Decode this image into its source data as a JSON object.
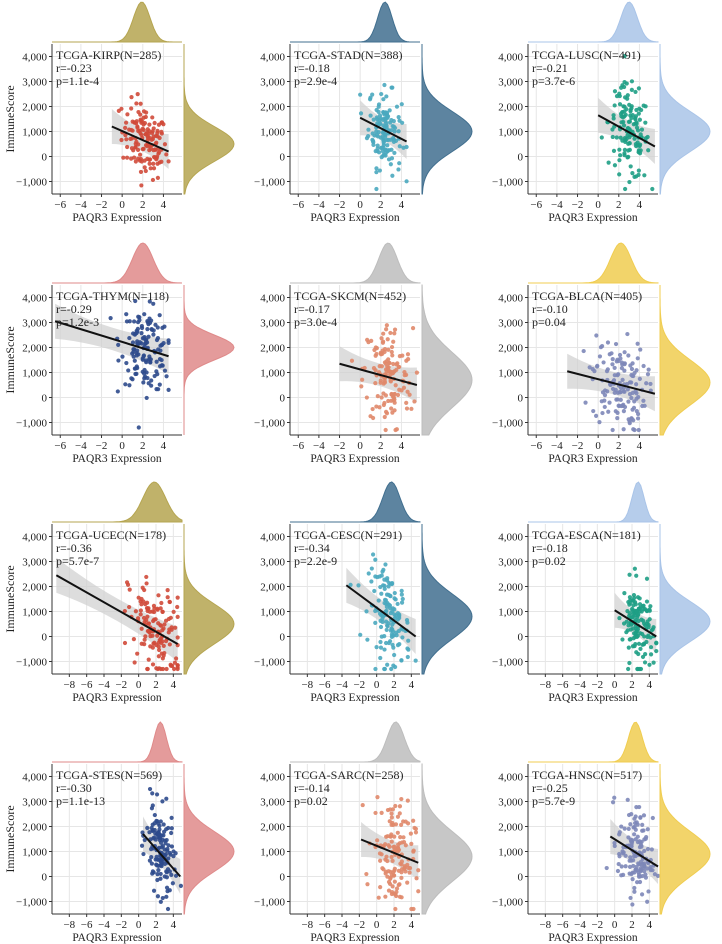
{
  "chart_data": [
    {
      "type": "scatter",
      "title": "TCGA-KIRP(N=285)",
      "stat_r": "r=-0.23",
      "stat_p": "p=1.1e-4",
      "xlabel": "PAQR3 Expression",
      "ylabel": "ImmuneScore",
      "xlim": [
        -6.8,
        5.8
      ],
      "ylim": [
        -1500,
        4500
      ],
      "xticks": [
        -6,
        -4,
        -2,
        0,
        2,
        4
      ],
      "xtick_labels": [
        "−6",
        "−4",
        "−2",
        "0",
        "2",
        "4"
      ],
      "yticks": [
        -1000,
        0,
        1000,
        2000,
        3000,
        4000
      ],
      "ytick_labels": [
        "−1,000",
        "0",
        "1,000",
        "2,000",
        "3,000",
        "4,000"
      ],
      "x_range": [
        -1,
        4.5
      ],
      "x_center": 2.2,
      "x_sd": 1.1,
      "y_center": 500,
      "y_sd": 700,
      "fit": {
        "x0": -1,
        "y0": 1200,
        "x1": 4.5,
        "y1": 200
      },
      "color": "#d04a3a",
      "density_color": "#b5a550",
      "marginal_x": {
        "center": 1.9,
        "sd": 0.8
      },
      "marginal_y": {
        "center": 500,
        "sd": 700
      }
    },
    {
      "type": "scatter",
      "title": "TCGA-STAD(N=388)",
      "stat_r": "r=-0.18",
      "stat_p": "p=2.9e-4",
      "xlabel": "PAQR3 Expression",
      "ylabel": "",
      "xlim": [
        -6.8,
        5.8
      ],
      "ylim": [
        -1500,
        4500
      ],
      "xticks": [
        -6,
        -4,
        -2,
        0,
        2,
        4
      ],
      "xtick_labels": [
        "−6",
        "−4",
        "−2",
        "0",
        "2",
        "4"
      ],
      "yticks": [
        -1000,
        0,
        1000,
        2000,
        3000,
        4000
      ],
      "ytick_labels": [
        "−1,000",
        "0",
        "1,000",
        "2,000",
        "3,000",
        "4,000"
      ],
      "x_range": [
        0,
        4.5
      ],
      "x_center": 2.4,
      "x_sd": 0.8,
      "y_center": 1000,
      "y_sd": 800,
      "fit": {
        "x0": 0,
        "y0": 1550,
        "x1": 4.5,
        "y1": 600
      },
      "color": "#4aa8bf",
      "density_color": "#416f8f",
      "marginal_x": {
        "center": 2.4,
        "sd": 0.7
      },
      "marginal_y": {
        "center": 1000,
        "sd": 800
      }
    },
    {
      "type": "scatter",
      "title": "TCGA-LUSC(N=491)",
      "stat_r": "r=-0.21",
      "stat_p": "p=3.7e-6",
      "xlabel": "PAQR3 Expression",
      "ylabel": "",
      "xlim": [
        -6.8,
        5.8
      ],
      "ylim": [
        -1500,
        4500
      ],
      "xticks": [
        -6,
        -4,
        -2,
        0,
        2,
        4
      ],
      "xtick_labels": [
        "−6",
        "−4",
        "−2",
        "0",
        "2",
        "4"
      ],
      "yticks": [
        -1000,
        0,
        1000,
        2000,
        3000,
        4000
      ],
      "ytick_labels": [
        "−1,000",
        "0",
        "1,000",
        "2,000",
        "3,000",
        "4,000"
      ],
      "x_range": [
        0,
        5.5
      ],
      "x_center": 3.0,
      "x_sd": 1.0,
      "y_center": 900,
      "y_sd": 900,
      "fit": {
        "x0": 0,
        "y0": 1650,
        "x1": 5.5,
        "y1": 400
      },
      "color": "#1e9e85",
      "density_color": "#a9c4e8",
      "marginal_x": {
        "center": 3.0,
        "sd": 0.8
      },
      "marginal_y": {
        "center": 1000,
        "sd": 800
      }
    },
    {
      "type": "scatter",
      "title": "TCGA-THYM(N=118)",
      "stat_r": "r=-0.29",
      "stat_p": "p=1.2e-3",
      "xlabel": "PAQR3 Expression",
      "ylabel": "ImmuneScore",
      "xlim": [
        -6.8,
        5.8
      ],
      "ylim": [
        -1500,
        4500
      ],
      "xticks": [
        -6,
        -4,
        -2,
        0,
        2,
        4
      ],
      "xtick_labels": [
        "−6",
        "−4",
        "−2",
        "0",
        "2",
        "4"
      ],
      "yticks": [
        -1000,
        0,
        1000,
        2000,
        3000,
        4000
      ],
      "ytick_labels": [
        "−1,000",
        "0",
        "1,000",
        "2,000",
        "3,000",
        "4,000"
      ],
      "x_range": [
        -2,
        4.5
      ],
      "x_center": 2.3,
      "x_sd": 1.2,
      "y_center": 1900,
      "y_sd": 800,
      "fit": {
        "x0": -6.5,
        "y0": 3050,
        "x1": 4.5,
        "y1": 1650
      },
      "color": "#2e4a8c",
      "density_color": "#df8a8a",
      "marginal_x": {
        "center": 2.0,
        "sd": 1.0
      },
      "marginal_y": {
        "center": 2000,
        "sd": 500
      }
    },
    {
      "type": "scatter",
      "title": "TCGA-SKCM(N=452)",
      "stat_r": "r=-0.17",
      "stat_p": "p=3.0e-4",
      "xlabel": "PAQR3 Expression",
      "ylabel": "",
      "xlim": [
        -6.8,
        5.8
      ],
      "ylim": [
        -1500,
        4500
      ],
      "xticks": [
        -6,
        -4,
        -2,
        0,
        2,
        4
      ],
      "xtick_labels": [
        "−6",
        "−4",
        "−2",
        "0",
        "2",
        "4"
      ],
      "yticks": [
        -1000,
        0,
        1000,
        2000,
        3000,
        4000
      ],
      "ytick_labels": [
        "−1,000",
        "0",
        "1,000",
        "2,000",
        "3,000",
        "4,000"
      ],
      "x_range": [
        -2,
        5.5
      ],
      "x_center": 2.7,
      "x_sd": 1.2,
      "y_center": 1000,
      "y_sd": 1100,
      "fit": {
        "x0": -2,
        "y0": 1350,
        "x1": 5.5,
        "y1": 500
      },
      "color": "#e0886a",
      "density_color": "#bdbdbd",
      "marginal_x": {
        "center": 2.7,
        "sd": 0.9
      },
      "marginal_y": {
        "center": 700,
        "sd": 1100
      }
    },
    {
      "type": "scatter",
      "title": "TCGA-BLCA(N=405)",
      "stat_r": "r=-0.10",
      "stat_p": "p=0.04",
      "xlabel": "PAQR3 Expression",
      "ylabel": "",
      "xlim": [
        -6.8,
        5.8
      ],
      "ylim": [
        -1500,
        4500
      ],
      "xticks": [
        -6,
        -4,
        -2,
        0,
        2,
        4
      ],
      "xtick_labels": [
        "−6",
        "−4",
        "−2",
        "0",
        "2",
        "4"
      ],
      "yticks": [
        -1000,
        0,
        1000,
        2000,
        3000,
        4000
      ],
      "ytick_labels": [
        "−1,000",
        "0",
        "1,000",
        "2,000",
        "3,000",
        "4,000"
      ],
      "x_range": [
        -3,
        5.5
      ],
      "x_center": 2.0,
      "x_sd": 1.3,
      "y_center": 600,
      "y_sd": 900,
      "fit": {
        "x0": -3,
        "y0": 1050,
        "x1": 5.5,
        "y1": 150
      },
      "color": "#7d87b8",
      "density_color": "#f0cd50",
      "marginal_x": {
        "center": 2.2,
        "sd": 1.0
      },
      "marginal_y": {
        "center": 600,
        "sd": 900
      }
    },
    {
      "type": "scatter",
      "title": "TCGA-UCEC(N=178)",
      "stat_r": "r=-0.36",
      "stat_p": "p=5.7e-7",
      "xlabel": "PAQR3 Expression",
      "ylabel": "ImmuneScore",
      "xlim": [
        -10,
        5
      ],
      "ylim": [
        -1500,
        4500
      ],
      "xticks": [
        -8,
        -6,
        -4,
        -2,
        0,
        2,
        4
      ],
      "xtick_labels": [
        "−8",
        "−6",
        "−4",
        "−2",
        "0",
        "2",
        "4"
      ],
      "yticks": [
        -1000,
        0,
        1000,
        2000,
        3000,
        4000
      ],
      "ytick_labels": [
        "−1,000",
        "0",
        "1,000",
        "2,000",
        "3,000",
        "4,000"
      ],
      "x_range": [
        -9.5,
        4.5
      ],
      "x_center": 2.0,
      "x_sd": 1.6,
      "y_center": 400,
      "y_sd": 900,
      "fit": {
        "x0": -9.5,
        "y0": 2450,
        "x1": 4.5,
        "y1": -300
      },
      "color": "#d04a3a",
      "density_color": "#b5a550",
      "marginal_x": {
        "center": 1.8,
        "sd": 1.3
      },
      "marginal_y": {
        "center": 500,
        "sd": 800
      }
    },
    {
      "type": "scatter",
      "title": "TCGA-CESC(N=291)",
      "stat_r": "r=-0.34",
      "stat_p": "p=2.2e-9",
      "xlabel": "PAQR3 Expression",
      "ylabel": "",
      "xlim": [
        -10,
        5
      ],
      "ylim": [
        -1500,
        4500
      ],
      "xticks": [
        -8,
        -6,
        -4,
        -2,
        0,
        2,
        4
      ],
      "xtick_labels": [
        "−8",
        "−6",
        "−4",
        "−2",
        "0",
        "2",
        "4"
      ],
      "yticks": [
        -1000,
        0,
        1000,
        2000,
        3000,
        4000
      ],
      "ytick_labels": [
        "−1,000",
        "0",
        "1,000",
        "2,000",
        "3,000",
        "4,000"
      ],
      "x_range": [
        -3.5,
        4.5
      ],
      "x_center": 1.5,
      "x_sd": 1.2,
      "y_center": 700,
      "y_sd": 900,
      "fit": {
        "x0": -3.5,
        "y0": 2050,
        "x1": 4.5,
        "y1": 0
      },
      "color": "#4aa8bf",
      "density_color": "#416f8f",
      "marginal_x": {
        "center": 1.7,
        "sd": 1.0
      },
      "marginal_y": {
        "center": 800,
        "sd": 900
      }
    },
    {
      "type": "scatter",
      "title": "TCGA-ESCA(N=181)",
      "stat_r": "r=-0.18",
      "stat_p": "p=0.02",
      "xlabel": "PAQR3 Expression",
      "ylabel": "",
      "xlim": [
        -10,
        5
      ],
      "ylim": [
        -1500,
        4500
      ],
      "xticks": [
        -8,
        -6,
        -4,
        -2,
        0,
        2,
        4
      ],
      "xtick_labels": [
        "−8",
        "−6",
        "−4",
        "−2",
        "0",
        "2",
        "4"
      ],
      "yticks": [
        -1000,
        0,
        1000,
        2000,
        3000,
        4000
      ],
      "ytick_labels": [
        "−1,000",
        "0",
        "1,000",
        "2,000",
        "3,000",
        "4,000"
      ],
      "x_range": [
        -0.5,
        4.8
      ],
      "x_center": 2.7,
      "x_sd": 0.9,
      "y_center": 500,
      "y_sd": 800,
      "fit": {
        "x0": 0,
        "y0": 1050,
        "x1": 4.8,
        "y1": 0
      },
      "color": "#1e9e85",
      "density_color": "#a9c4e8",
      "marginal_x": {
        "center": 2.7,
        "sd": 0.7
      },
      "marginal_y": {
        "center": 600,
        "sd": 800
      }
    },
    {
      "type": "scatter",
      "title": "TCGA-STES(N=569)",
      "stat_r": "r=-0.30",
      "stat_p": "p=1.1e-13",
      "xlabel": "PAQR3 Expression",
      "ylabel": "ImmuneScore",
      "xlim": [
        -10,
        5
      ],
      "ylim": [
        -1500,
        4500
      ],
      "xticks": [
        -8,
        -6,
        -4,
        -2,
        0,
        2,
        4
      ],
      "xtick_labels": [
        "−8",
        "−6",
        "−4",
        "−2",
        "0",
        "2",
        "4"
      ],
      "yticks": [
        -1000,
        0,
        1000,
        2000,
        3000,
        4000
      ],
      "ytick_labels": [
        "−1,000",
        "0",
        "1,000",
        "2,000",
        "3,000",
        "4,000"
      ],
      "x_range": [
        0,
        5
      ],
      "x_center": 2.5,
      "x_sd": 0.8,
      "y_center": 800,
      "y_sd": 850,
      "fit": {
        "x0": 0.5,
        "y0": 1700,
        "x1": 4.8,
        "y1": 0
      },
      "color": "#2e4a8c",
      "density_color": "#df8a8a",
      "marginal_x": {
        "center": 2.5,
        "sd": 0.7
      },
      "marginal_y": {
        "center": 1000,
        "sd": 800
      }
    },
    {
      "type": "scatter",
      "title": "TCGA-SARC(N=258)",
      "stat_r": "r=-0.14",
      "stat_p": "p=0.02",
      "xlabel": "PAQR3 Expression",
      "ylabel": "",
      "xlim": [
        -10,
        5
      ],
      "ylim": [
        -1500,
        4500
      ],
      "xticks": [
        -8,
        -6,
        -4,
        -2,
        0,
        2,
        4
      ],
      "xtick_labels": [
        "−8",
        "−6",
        "−4",
        "−2",
        "0",
        "2",
        "4"
      ],
      "yticks": [
        -1000,
        0,
        1000,
        2000,
        3000,
        4000
      ],
      "ytick_labels": [
        "−1,000",
        "0",
        "1,000",
        "2,000",
        "3,000",
        "4,000"
      ],
      "x_range": [
        -1.8,
        4.8
      ],
      "x_center": 2.0,
      "x_sd": 1.2,
      "y_center": 800,
      "y_sd": 1100,
      "fit": {
        "x0": -1.8,
        "y0": 1480,
        "x1": 4.8,
        "y1": 550
      },
      "color": "#e0886a",
      "density_color": "#bdbdbd",
      "marginal_x": {
        "center": 2.2,
        "sd": 1.0
      },
      "marginal_y": {
        "center": 800,
        "sd": 1000
      }
    },
    {
      "type": "scatter",
      "title": "TCGA-HNSC(N=517)",
      "stat_r": "r=-0.25",
      "stat_p": "p=5.7e-9",
      "xlabel": "PAQR3 Expression",
      "ylabel": "",
      "xlim": [
        -10,
        5
      ],
      "ylim": [
        -1500,
        4500
      ],
      "xticks": [
        -8,
        -6,
        -4,
        -2,
        0,
        2,
        4
      ],
      "xtick_labels": [
        "−8",
        "−6",
        "−4",
        "−2",
        "0",
        "2",
        "4"
      ],
      "yticks": [
        -1000,
        0,
        1000,
        2000,
        3000,
        4000
      ],
      "ytick_labels": [
        "−1,000",
        "0",
        "1,000",
        "2,000",
        "3,000",
        "4,000"
      ],
      "x_range": [
        -1,
        5
      ],
      "x_center": 2.4,
      "x_sd": 1.0,
      "y_center": 900,
      "y_sd": 900,
      "fit": {
        "x0": -0.5,
        "y0": 1600,
        "x1": 5,
        "y1": 400
      },
      "color": "#7d87b8",
      "density_color": "#f0cd50",
      "marginal_x": {
        "center": 2.4,
        "sd": 0.8
      },
      "marginal_y": {
        "center": 900,
        "sd": 900
      }
    }
  ]
}
